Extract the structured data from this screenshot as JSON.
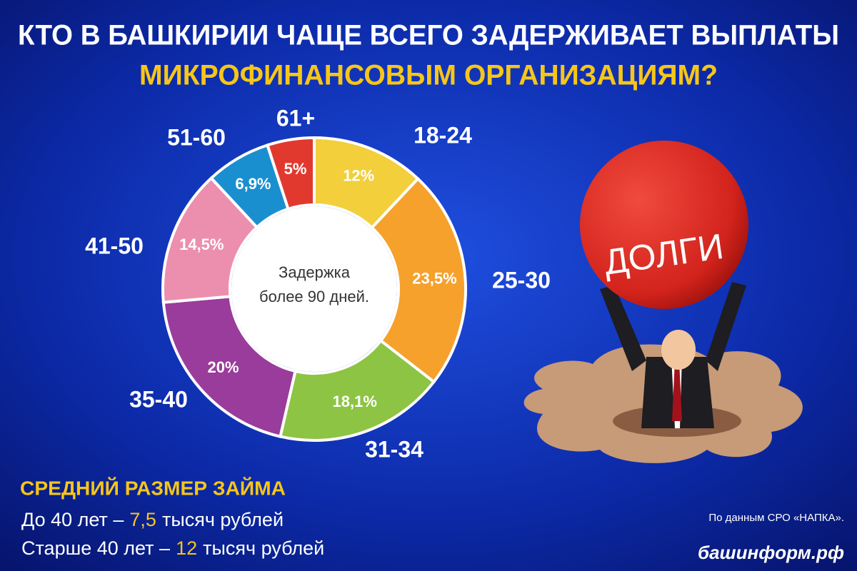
{
  "chart_data": {
    "type": "donut",
    "title": "КТО В БАШКИРИИ ЧАЩЕ ВСЕГО ЗАДЕРЖИВАЕТ ВЫПЛАТЫ",
    "subtitle": "МИКРОФИНАНСОВЫМ ОРГАНИЗАЦИЯМ?",
    "center_text": [
      "Задержка",
      "более 90 дней."
    ],
    "categories": [
      "18-24",
      "25-30",
      "31-34",
      "35-40",
      "41-50",
      "51-60",
      "61+"
    ],
    "values": [
      12,
      23.5,
      18.1,
      20,
      14.5,
      6.9,
      5
    ],
    "value_labels": [
      "12%",
      "23,5%",
      "18,1%",
      "20%",
      "14,5%",
      "6,9%",
      "5%"
    ],
    "colors": [
      "#f2cf3b",
      "#f5a12b",
      "#8dc443",
      "#9a3c9b",
      "#ec8fae",
      "#1a8fd0",
      "#e2392f"
    ]
  },
  "loan": {
    "heading": "СРЕДНИЙ РАЗМЕР ЗАЙМА",
    "rows": [
      {
        "label": "До 40 лет –",
        "amount": "7,5",
        "unit": "тысяч рублей"
      },
      {
        "label": "Старше 40 лет –",
        "amount": "12",
        "unit": "тысяч рублей"
      }
    ]
  },
  "illustration": {
    "ball_text": "ДОЛГИ"
  },
  "source": "По данным СРО «НАПКА».",
  "site": "башинформ.рф"
}
